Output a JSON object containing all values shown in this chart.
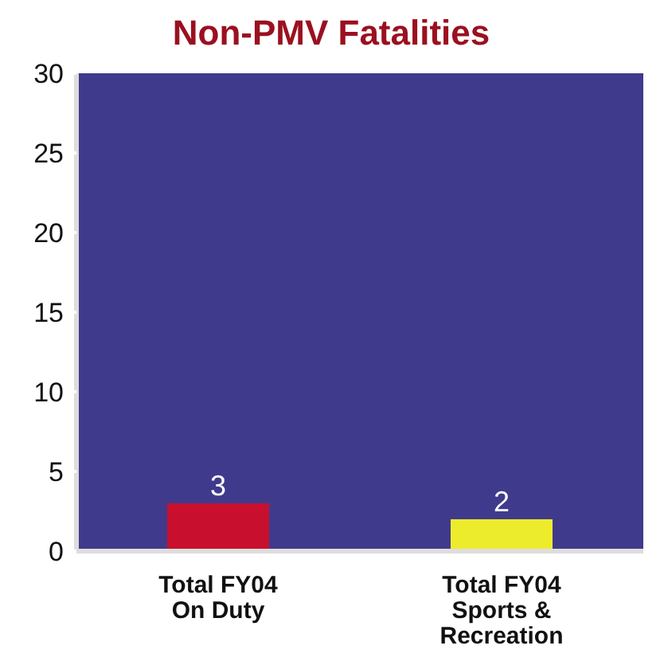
{
  "chart_data": {
    "type": "bar",
    "title": "Non-PMV Fatalities",
    "categories": [
      "Total FY04\nOn Duty",
      "Total FY04\nSports &\nRecreation"
    ],
    "values": [
      3,
      2
    ],
    "colors": [
      "#c8102e",
      "#ecec2c"
    ],
    "ylim": [
      0,
      30
    ],
    "yticks": [
      0,
      5,
      10,
      15,
      20,
      25,
      30
    ],
    "data_labels": true
  }
}
